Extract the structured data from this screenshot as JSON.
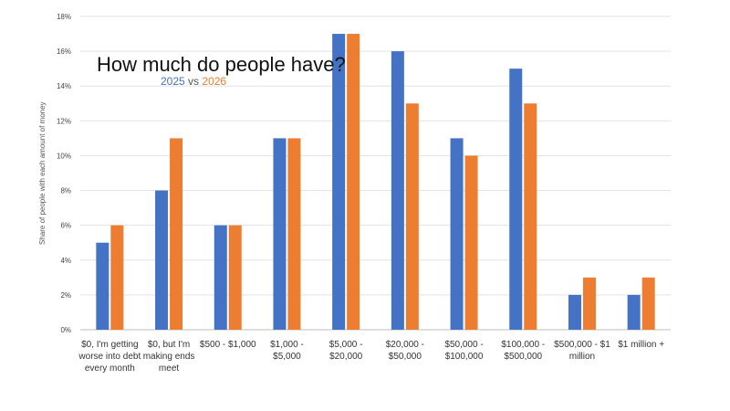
{
  "chart_data": {
    "type": "bar",
    "title": "How much do people have?",
    "subtitle": {
      "first": "2025",
      "sep": "vs",
      "second": "2026"
    },
    "ylabel": "Share of people with each amount of money",
    "xlabel": "",
    "ylim": [
      0,
      18
    ],
    "yticks": [
      "0%",
      "2%",
      "4%",
      "6%",
      "8%",
      "10%",
      "12%",
      "14%",
      "16%",
      "18%"
    ],
    "ytick_values": [
      0,
      2,
      4,
      6,
      8,
      10,
      12,
      14,
      16,
      18
    ],
    "grid": true,
    "categories": [
      "$0, I'm getting worse into debt every month",
      "$0, but I'm making ends meet",
      "$500 - $1,000",
      "$1,000 - $5,000",
      "$5,000 - $20,000",
      "$20,000 - $50,000",
      "$50,000 - $100,000",
      "$100,000 - $500,000",
      "$500,000 - $1 million",
      "$1 million +"
    ],
    "series": [
      {
        "name": "2025",
        "color": "#4472c4",
        "values": [
          5,
          8,
          6,
          11,
          17,
          16,
          11,
          15,
          2,
          2
        ]
      },
      {
        "name": "2026",
        "color": "#ed7d31",
        "values": [
          6,
          11,
          6,
          11,
          17,
          13,
          10,
          13,
          3,
          3
        ]
      }
    ]
  }
}
